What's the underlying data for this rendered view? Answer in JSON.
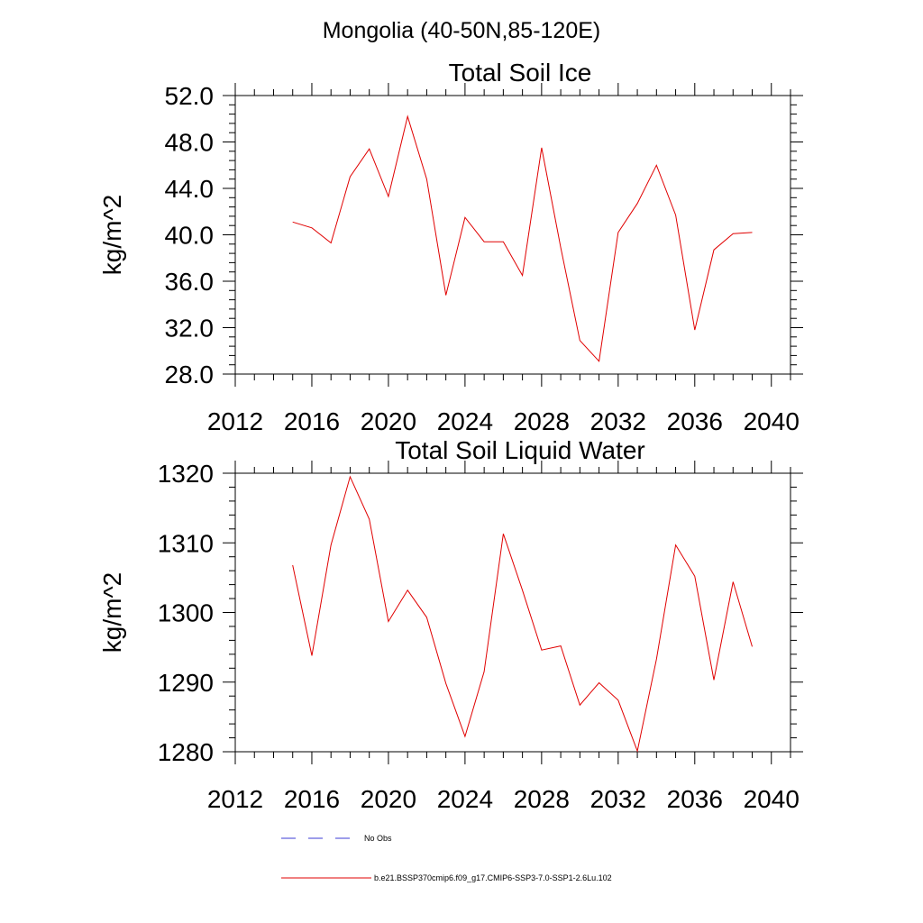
{
  "figure_title": "Mongolia (40-50N,85-120E)",
  "legend": {
    "entries": [
      {
        "label": "No Obs",
        "color": "#3b3bd6",
        "dash": true
      },
      {
        "label": "b.e21.BSSP370cmip6.f09_g17.CMIP6-SSP3-7.0-SSP1-2.6Lu.102",
        "color": "#e00000",
        "dash": false
      }
    ]
  },
  "chart_data": [
    {
      "type": "line",
      "title": "Total Soil Ice",
      "xlabel": "",
      "ylabel": "kg/m^2",
      "xlim": [
        2012,
        2041
      ],
      "ylim": [
        28,
        52
      ],
      "xticks": [
        2012,
        2016,
        2020,
        2024,
        2028,
        2032,
        2036,
        2040
      ],
      "xtick_labels": [
        "2012",
        "2016",
        "2020",
        "2024",
        "2028",
        "2032",
        "2036",
        "2040"
      ],
      "yticks": [
        28,
        32,
        36,
        40,
        44,
        48,
        52
      ],
      "ytick_labels": [
        "28.0",
        "32.0",
        "36.0",
        "40.0",
        "44.0",
        "48.0",
        "52.0"
      ],
      "grid": false,
      "series": [
        {
          "name": "b.e21.BSSP370cmip6.f09_g17.CMIP6-SSP3-7.0-SSP1-2.6Lu.102",
          "color": "#e00000",
          "x": [
            2015,
            2016,
            2017,
            2018,
            2019,
            2020,
            2021,
            2022,
            2023,
            2024,
            2025,
            2026,
            2027,
            2028,
            2029,
            2030,
            2031,
            2032,
            2033,
            2034,
            2035,
            2036,
            2037,
            2038,
            2039
          ],
          "y": [
            41.1,
            40.6,
            39.3,
            45.0,
            47.4,
            43.3,
            50.2,
            44.8,
            34.8,
            41.5,
            39.4,
            39.4,
            36.5,
            47.5,
            38.9,
            30.9,
            29.1,
            40.2,
            42.7,
            46.0,
            41.7,
            31.8,
            38.7,
            40.1,
            40.2
          ]
        }
      ]
    },
    {
      "type": "line",
      "title": "Total Soil Liquid Water",
      "xlabel": "",
      "ylabel": "kg/m^2",
      "xlim": [
        2012,
        2041
      ],
      "ylim": [
        1280,
        1320
      ],
      "xticks": [
        2012,
        2016,
        2020,
        2024,
        2028,
        2032,
        2036,
        2040
      ],
      "xtick_labels": [
        "2012",
        "2016",
        "2020",
        "2024",
        "2028",
        "2032",
        "2036",
        "2040"
      ],
      "yticks": [
        1280,
        1290,
        1300,
        1310,
        1320
      ],
      "ytick_labels": [
        "1280",
        "1290",
        "1300",
        "1310",
        "1320"
      ],
      "grid": false,
      "series": [
        {
          "name": "b.e21.BSSP370cmip6.f09_g17.CMIP6-SSP3-7.0-SSP1-2.6Lu.102",
          "color": "#e00000",
          "x": [
            2015,
            2016,
            2017,
            2018,
            2019,
            2020,
            2021,
            2022,
            2023,
            2024,
            2025,
            2026,
            2027,
            2028,
            2029,
            2030,
            2031,
            2032,
            2033,
            2034,
            2035,
            2036,
            2037,
            2038,
            2039
          ],
          "y": [
            1306.8,
            1293.8,
            1309.7,
            1319.5,
            1313.4,
            1298.7,
            1303.2,
            1299.3,
            1289.8,
            1282.2,
            1291.5,
            1311.3,
            1303.2,
            1294.6,
            1295.2,
            1286.7,
            1289.9,
            1287.4,
            1280.1,
            1293.3,
            1309.7,
            1305.2,
            1290.3,
            1304.4,
            1295.1
          ]
        }
      ]
    }
  ]
}
